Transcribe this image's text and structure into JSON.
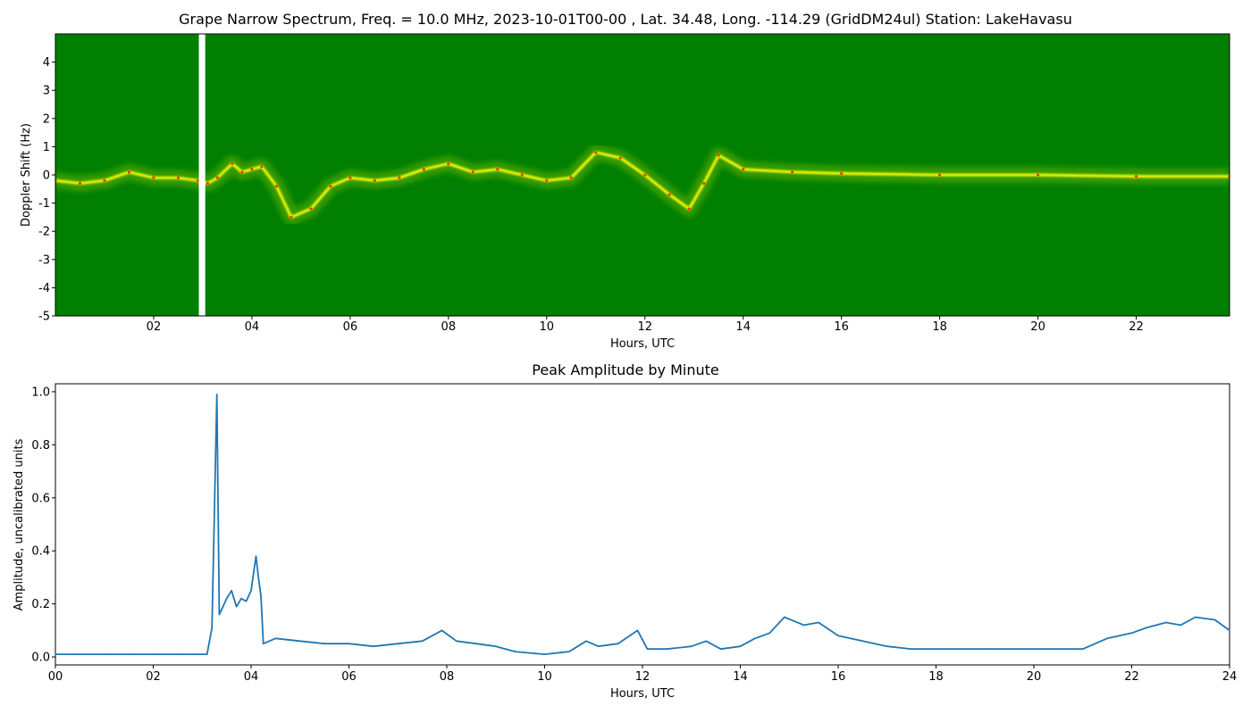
{
  "colors": {
    "spectrum_background": "#007f00",
    "spectrum_low_signal": "#9acd00",
    "spectrum_signal": "#ffff00",
    "spectrum_peak": "#ff3c00",
    "line_series": "#1f77b4",
    "gap": "#ffffff"
  },
  "chart_data": [
    {
      "type": "heatmap",
      "title": "Grape Narrow Spectrum, Freq. = 10.0 MHz, 2023-10-01T00-00 , Lat.  34.48, Long. -114.29 (GridDM24ul) Station: LakeHavasu",
      "xlabel": "Hours, UTC",
      "ylabel": "Doppler Shift (Hz)",
      "xlim": [
        0,
        23.9
      ],
      "ylim": [
        -5,
        5
      ],
      "x_ticks": [
        "02",
        "04",
        "06",
        "08",
        "10",
        "12",
        "14",
        "16",
        "18",
        "20",
        "22"
      ],
      "y_ticks": [
        "-5",
        "-4",
        "-3",
        "-2",
        "-1",
        "0",
        "1",
        "2",
        "3",
        "4"
      ],
      "data_gap_hours": [
        2.92,
        3.05
      ],
      "doppler_trace": [
        {
          "hour": 0.0,
          "hz": -0.2
        },
        {
          "hour": 0.5,
          "hz": -0.3
        },
        {
          "hour": 1.0,
          "hz": -0.2
        },
        {
          "hour": 1.5,
          "hz": 0.1
        },
        {
          "hour": 2.0,
          "hz": -0.1
        },
        {
          "hour": 2.5,
          "hz": -0.1
        },
        {
          "hour": 2.9,
          "hz": -0.2
        },
        {
          "hour": 3.1,
          "hz": -0.3
        },
        {
          "hour": 3.3,
          "hz": -0.1
        },
        {
          "hour": 3.6,
          "hz": 0.4
        },
        {
          "hour": 3.8,
          "hz": 0.1
        },
        {
          "hour": 4.0,
          "hz": 0.2
        },
        {
          "hour": 4.2,
          "hz": 0.3
        },
        {
          "hour": 4.5,
          "hz": -0.4
        },
        {
          "hour": 4.8,
          "hz": -1.5
        },
        {
          "hour": 5.2,
          "hz": -1.2
        },
        {
          "hour": 5.6,
          "hz": -0.4
        },
        {
          "hour": 6.0,
          "hz": -0.1
        },
        {
          "hour": 6.5,
          "hz": -0.2
        },
        {
          "hour": 7.0,
          "hz": -0.1
        },
        {
          "hour": 7.5,
          "hz": 0.2
        },
        {
          "hour": 8.0,
          "hz": 0.4
        },
        {
          "hour": 8.5,
          "hz": 0.1
        },
        {
          "hour": 9.0,
          "hz": 0.2
        },
        {
          "hour": 9.5,
          "hz": 0.0
        },
        {
          "hour": 10.0,
          "hz": -0.2
        },
        {
          "hour": 10.5,
          "hz": -0.1
        },
        {
          "hour": 11.0,
          "hz": 0.8
        },
        {
          "hour": 11.5,
          "hz": 0.6
        },
        {
          "hour": 12.0,
          "hz": 0.0
        },
        {
          "hour": 12.5,
          "hz": -0.7
        },
        {
          "hour": 12.9,
          "hz": -1.2
        },
        {
          "hour": 13.2,
          "hz": -0.3
        },
        {
          "hour": 13.5,
          "hz": 0.7
        },
        {
          "hour": 14.0,
          "hz": 0.2
        },
        {
          "hour": 15.0,
          "hz": 0.1
        },
        {
          "hour": 16.0,
          "hz": 0.05
        },
        {
          "hour": 18.0,
          "hz": 0.0
        },
        {
          "hour": 20.0,
          "hz": 0.0
        },
        {
          "hour": 22.0,
          "hz": -0.05
        },
        {
          "hour": 23.9,
          "hz": -0.05
        }
      ]
    },
    {
      "type": "line",
      "title": "Peak Amplitude by Minute",
      "xlabel": "Hours, UTC",
      "ylabel": "Amplitude, uncalibrated units",
      "xlim": [
        0,
        24
      ],
      "ylim": [
        -0.03,
        1.03
      ],
      "x_ticks": [
        "00",
        "02",
        "04",
        "06",
        "08",
        "10",
        "12",
        "14",
        "16",
        "18",
        "20",
        "22",
        "24"
      ],
      "y_ticks": [
        "0.0",
        "0.2",
        "0.4",
        "0.6",
        "0.8",
        "1.0"
      ],
      "x": [
        0,
        0.5,
        1.0,
        1.5,
        2.0,
        2.5,
        2.8,
        3.1,
        3.2,
        3.3,
        3.35,
        3.4,
        3.5,
        3.6,
        3.7,
        3.8,
        3.9,
        4.0,
        4.1,
        4.15,
        4.2,
        4.25,
        4.5,
        5.0,
        5.5,
        6.0,
        6.5,
        7.0,
        7.5,
        7.9,
        8.2,
        8.6,
        9.0,
        9.4,
        10.0,
        10.5,
        10.85,
        11.1,
        11.5,
        11.9,
        12.1,
        12.5,
        13.0,
        13.3,
        13.6,
        14.0,
        14.3,
        14.6,
        14.9,
        15.3,
        15.6,
        16.0,
        16.5,
        17.0,
        17.5,
        18.0,
        19.0,
        20.0,
        20.5,
        21.0,
        21.5,
        22.0,
        22.3,
        22.7,
        23.0,
        23.3,
        23.7,
        24.0
      ],
      "series": [
        {
          "values": [
            0.01,
            0.01,
            0.01,
            0.01,
            0.01,
            0.01,
            0.01,
            0.01,
            0.11,
            0.99,
            0.16,
            0.18,
            0.22,
            0.25,
            0.19,
            0.22,
            0.21,
            0.25,
            0.38,
            0.3,
            0.23,
            0.05,
            0.07,
            0.06,
            0.05,
            0.05,
            0.04,
            0.05,
            0.06,
            0.1,
            0.06,
            0.05,
            0.04,
            0.02,
            0.01,
            0.02,
            0.06,
            0.04,
            0.05,
            0.1,
            0.03,
            0.03,
            0.04,
            0.06,
            0.03,
            0.04,
            0.07,
            0.09,
            0.15,
            0.12,
            0.13,
            0.08,
            0.06,
            0.04,
            0.03,
            0.03,
            0.03,
            0.03,
            0.03,
            0.03,
            0.07,
            0.09,
            0.11,
            0.13,
            0.12,
            0.15,
            0.14,
            0.1
          ]
        }
      ]
    }
  ]
}
